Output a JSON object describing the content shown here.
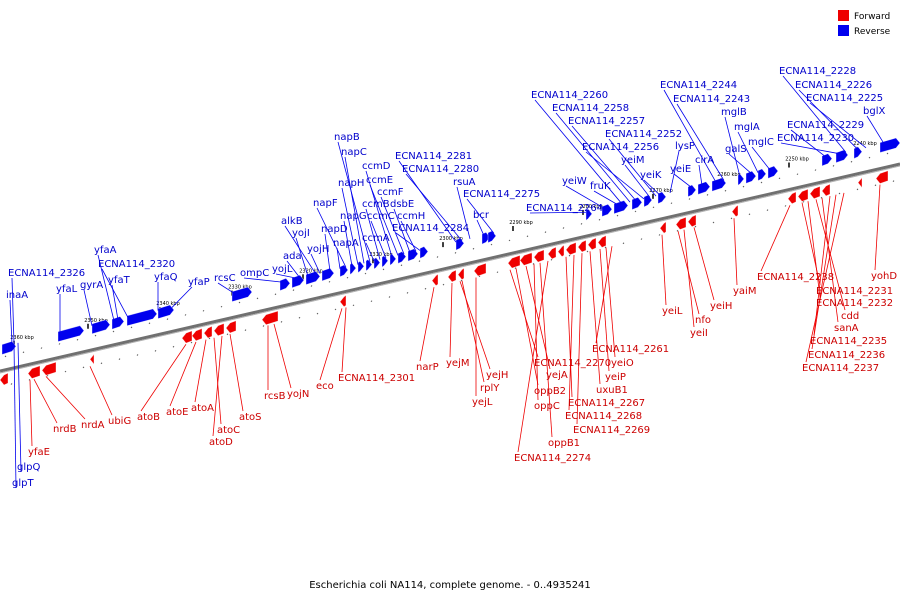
{
  "caption": "Escherichia coli NA114, complete genome. - 0..4935241",
  "legend": [
    {
      "label": "Forward",
      "color": "#ee0000"
    },
    {
      "label": "Reverse",
      "color": "#0000ee"
    }
  ],
  "ticks": [
    "2360 kbp",
    "2350 kbp",
    "2340 kbp",
    "2330 kbp",
    "2320 kbp",
    "2310 kbp",
    "2300 kbp",
    "2290 kbp",
    "2280 kbp",
    "2270 kbp",
    "2260 kbp",
    "2250 kbp",
    "2240 kbp"
  ],
  "reverse_labels": [
    "inaA",
    "ECNA114_2326",
    "yfaL",
    "gyrA",
    "yfaA",
    "yfaT",
    "ECNA114_2320",
    "yfaQ",
    "yfaP",
    "rcsC",
    "ompC",
    "yojL",
    "ada",
    "yojI",
    "alkB",
    "yojH",
    "napD",
    "napA",
    "napF",
    "napG",
    "napH",
    "napC",
    "napB",
    "ccmA",
    "ccmB",
    "ccmC",
    "ccmD",
    "ccmE",
    "ccmF",
    "dsbE",
    "ccmH",
    "ECNA114_2284",
    "ECNA114_2281",
    "ECNA114_2280",
    "rsuA",
    "bcr",
    "ECNA114_2275",
    "ECNA114_2264",
    "yeiW",
    "fruK",
    "ECNA114_2260",
    "ECNA114_2258",
    "ECNA114_2257",
    "ECNA114_2256",
    "yeiM",
    "ECNA114_2252",
    "yeiK",
    "lysP",
    "yeiE",
    "cirA",
    "ECNA114_2244",
    "ECNA114_2243",
    "mglB",
    "galS",
    "mglA",
    "mglC",
    "ECNA114_2229",
    "ECNA114_2230",
    "ECNA114_2228",
    "ECNA114_2226",
    "ECNA114_2225",
    "bglX",
    "glpT",
    "glpQ"
  ],
  "forward_labels": [
    "yfaE",
    "nrdB",
    "nrdA",
    "ubiG",
    "atoB",
    "atoE",
    "atoA",
    "atoC",
    "atoD",
    "atoS",
    "rcsB",
    "yojN",
    "eco",
    "ECNA114_2301",
    "narP",
    "yejM",
    "yejH",
    "rplY",
    "yejL",
    "ECNA114_2270",
    "oppB2",
    "yejA",
    "oppC",
    "oppB1",
    "ECNA114_2274",
    "ECNA114_2267",
    "ECNA114_2268",
    "ECNA114_2269",
    "uxuB1",
    "yeiP",
    "yeiO",
    "ECNA114_2261",
    "yeiL",
    "nfo",
    "yeiI",
    "yeiH",
    "yaiM",
    "ECNA114_2238",
    "ECNA114_2231",
    "ECNA114_2232",
    "cdd",
    "sanA",
    "ECNA114_2235",
    "ECNA114_2236",
    "ECNA114_2237",
    "yohD"
  ]
}
